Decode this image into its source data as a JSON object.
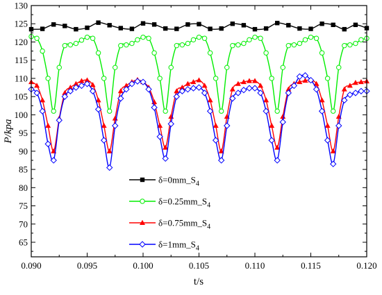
{
  "chart_data": {
    "type": "line",
    "xlabel": "t/s",
    "ylabel": "P/kpa",
    "xlim": [
      0.09,
      0.12
    ],
    "ylim": [
      61,
      130
    ],
    "x_ticks": [
      "0.090",
      "0.095",
      "0.100",
      "0.105",
      "0.110",
      "0.115",
      "0.120"
    ],
    "x_tick_values": [
      0.09,
      0.095,
      0.1,
      0.105,
      0.11,
      0.115,
      0.12
    ],
    "y_ticks": [
      "65",
      "70",
      "75",
      "80",
      "85",
      "90",
      "95",
      "100",
      "105",
      "110",
      "115",
      "120",
      "125",
      "130"
    ],
    "y_tick_values": [
      65,
      70,
      75,
      80,
      85,
      90,
      95,
      100,
      105,
      110,
      115,
      120,
      125,
      130
    ],
    "legend_position": "center-left",
    "series": [
      {
        "name": "δ=0mm_S",
        "name_sub": "4",
        "color": "#000000",
        "marker": "square",
        "x": [
          0.09,
          0.091,
          0.092,
          0.093,
          0.094,
          0.095,
          0.096,
          0.097,
          0.098,
          0.099,
          0.1,
          0.101,
          0.102,
          0.103,
          0.104,
          0.105,
          0.106,
          0.107,
          0.108,
          0.109,
          0.11,
          0.111,
          0.112,
          0.113,
          0.114,
          0.115,
          0.116,
          0.117,
          0.118,
          0.119,
          0.12
        ],
        "y": [
          123.5,
          123.6,
          124.8,
          124.4,
          123.5,
          123.9,
          125.3,
          124.6,
          123.8,
          123.6,
          125.1,
          124.8,
          123.7,
          123.6,
          124.8,
          124.9,
          123.6,
          123.7,
          125.0,
          124.6,
          123.5,
          123.7,
          125.2,
          124.6,
          123.7,
          123.6,
          125.0,
          124.7,
          123.5,
          124.7,
          123.8
        ]
      },
      {
        "name": "δ=0.25mm_S",
        "name_sub": "4",
        "color": "#00ee00",
        "marker": "circle",
        "x": [
          0.09,
          0.0905,
          0.091,
          0.0915,
          0.092,
          0.0925,
          0.093,
          0.0935,
          0.094,
          0.0945,
          0.095,
          0.0955,
          0.096,
          0.0965,
          0.097,
          0.0975,
          0.098,
          0.0985,
          0.099,
          0.0995,
          0.1,
          0.1005,
          0.101,
          0.1015,
          0.102,
          0.1025,
          0.103,
          0.1035,
          0.104,
          0.1045,
          0.105,
          0.1055,
          0.106,
          0.1065,
          0.107,
          0.1075,
          0.108,
          0.1085,
          0.109,
          0.1095,
          0.11,
          0.1105,
          0.111,
          0.1115,
          0.112,
          0.1125,
          0.113,
          0.1135,
          0.114,
          0.1145,
          0.115,
          0.1155,
          0.116,
          0.1165,
          0.117,
          0.1175,
          0.118,
          0.1185,
          0.119,
          0.1195,
          0.12
        ],
        "y": [
          121.5,
          121.0,
          117.5,
          110.0,
          101.0,
          113.0,
          119.0,
          119.2,
          119.6,
          120.5,
          121.3,
          121.0,
          117.0,
          110.0,
          101.0,
          113.0,
          119.0,
          119.2,
          119.6,
          120.6,
          121.3,
          121.0,
          117.0,
          110.0,
          101.0,
          113.0,
          119.0,
          119.2,
          119.6,
          120.6,
          121.3,
          121.0,
          117.0,
          110.0,
          101.0,
          113.0,
          119.0,
          119.2,
          119.6,
          120.6,
          121.3,
          121.0,
          117.0,
          110.0,
          101.0,
          113.0,
          119.0,
          119.2,
          119.6,
          120.6,
          121.3,
          121.0,
          117.0,
          110.0,
          101.0,
          113.0,
          119.0,
          119.2,
          119.6,
          120.6,
          121.0
        ]
      },
      {
        "name": "δ=0.75mm_S",
        "name_sub": "4",
        "color": "#ff0000",
        "marker": "triangle",
        "x": [
          0.09,
          0.0905,
          0.091,
          0.0915,
          0.092,
          0.0925,
          0.093,
          0.0935,
          0.094,
          0.0945,
          0.095,
          0.0955,
          0.096,
          0.0965,
          0.097,
          0.0975,
          0.098,
          0.0985,
          0.099,
          0.0995,
          0.1,
          0.1005,
          0.101,
          0.1015,
          0.102,
          0.1025,
          0.103,
          0.1035,
          0.104,
          0.1045,
          0.105,
          0.1055,
          0.106,
          0.1065,
          0.107,
          0.1075,
          0.108,
          0.1085,
          0.109,
          0.1095,
          0.11,
          0.1105,
          0.111,
          0.1115,
          0.112,
          0.1125,
          0.113,
          0.1135,
          0.114,
          0.1145,
          0.115,
          0.1155,
          0.116,
          0.1165,
          0.117,
          0.1175,
          0.118,
          0.1185,
          0.119,
          0.1195,
          0.12
        ],
        "y": [
          109.0,
          108.0,
          104.0,
          97.0,
          90.0,
          99.0,
          106.0,
          107.5,
          108.5,
          109.3,
          109.5,
          108.2,
          104.0,
          97.0,
          90.0,
          99.0,
          106.5,
          108.0,
          109.0,
          109.6,
          109.0,
          107.5,
          103.5,
          97.0,
          91.0,
          99.5,
          106.5,
          107.5,
          108.5,
          109.0,
          109.5,
          108.0,
          104.0,
          97.0,
          90.0,
          99.5,
          107.0,
          108.5,
          109.0,
          109.3,
          109.3,
          108.0,
          104.0,
          97.0,
          91.0,
          99.5,
          107.0,
          108.5,
          109.0,
          109.4,
          109.5,
          108.5,
          104.0,
          97.0,
          90.0,
          99.5,
          107.0,
          108.0,
          108.8,
          109.0,
          109.2
        ]
      },
      {
        "name": "δ=1mm_S",
        "name_sub": "4",
        "color": "#0000ff",
        "marker": "diamond",
        "x": [
          0.09,
          0.0905,
          0.091,
          0.0915,
          0.092,
          0.0925,
          0.093,
          0.0935,
          0.094,
          0.0945,
          0.095,
          0.0955,
          0.096,
          0.0965,
          0.097,
          0.0975,
          0.098,
          0.0985,
          0.099,
          0.0995,
          0.1,
          0.1005,
          0.101,
          0.1015,
          0.102,
          0.1025,
          0.103,
          0.1035,
          0.104,
          0.1045,
          0.105,
          0.1055,
          0.106,
          0.1065,
          0.107,
          0.1075,
          0.108,
          0.1085,
          0.109,
          0.1095,
          0.11,
          0.1105,
          0.111,
          0.1115,
          0.112,
          0.1125,
          0.113,
          0.1135,
          0.114,
          0.1145,
          0.115,
          0.1155,
          0.116,
          0.1165,
          0.117,
          0.1175,
          0.118,
          0.1185,
          0.119,
          0.1195,
          0.12
        ],
        "y": [
          107.0,
          106.0,
          101.0,
          92.0,
          87.5,
          98.5,
          105.0,
          106.5,
          107.5,
          108.0,
          108.5,
          106.5,
          101.5,
          93.0,
          85.5,
          97.0,
          104.5,
          107.0,
          108.5,
          109.2,
          109.0,
          107.0,
          102.0,
          94.0,
          88.0,
          97.5,
          105.0,
          106.5,
          107.0,
          107.3,
          107.5,
          106.0,
          101.0,
          93.0,
          87.5,
          97.0,
          104.5,
          106.0,
          106.8,
          107.3,
          107.3,
          106.0,
          101.0,
          93.0,
          87.5,
          98.0,
          106.0,
          108.0,
          110.5,
          110.8,
          109.5,
          107.0,
          101.0,
          93.0,
          86.5,
          97.0,
          104.0,
          105.5,
          106.0,
          106.5,
          106.5
        ]
      }
    ]
  }
}
